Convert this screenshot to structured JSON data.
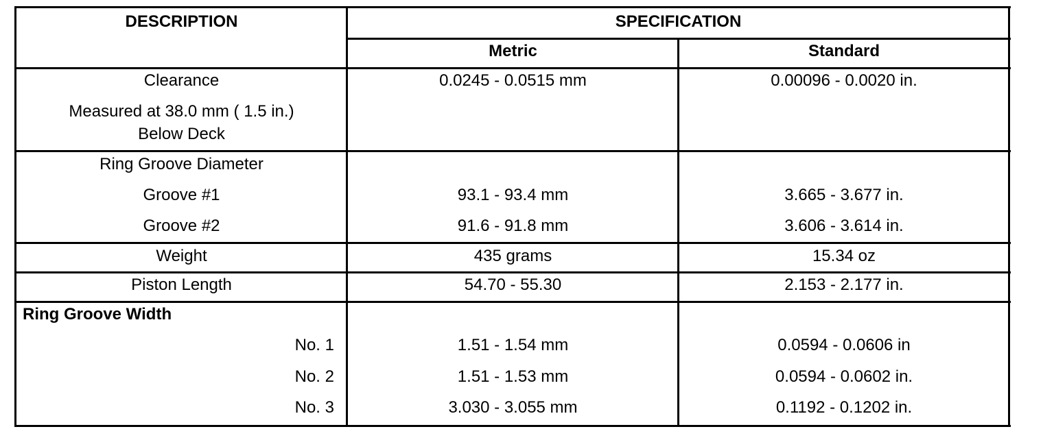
{
  "table": {
    "header": {
      "description": "DESCRIPTION",
      "specification": "SPECIFICATION",
      "metric": "Metric",
      "standard": "Standard"
    },
    "rows": [
      {
        "description": [
          "Clearance",
          "Measured at 38.0 mm ( 1.5 in.)",
          "Below Deck"
        ],
        "metric": [
          "0.0245 - 0.0515 mm"
        ],
        "standard": [
          "0.00096 - 0.0020 in."
        ]
      },
      {
        "description": [
          "Ring Groove Diameter",
          "Groove #1",
          "Groove #2"
        ],
        "metric": [
          "93.1 - 93.4 mm",
          "91.6 - 91.8 mm"
        ],
        "standard": [
          "3.665 - 3.677 in.",
          "3.606 - 3.614 in."
        ]
      },
      {
        "description": [
          "Weight"
        ],
        "metric": [
          "435 grams"
        ],
        "standard": [
          "15.34 oz"
        ]
      },
      {
        "description": [
          "Piston Length"
        ],
        "metric": [
          "54.70 - 55.30"
        ],
        "standard": [
          "2.153 - 2.177 in."
        ]
      },
      {
        "description": [
          "Ring Groove Width",
          "No. 1",
          "No. 2",
          "No. 3"
        ],
        "metric": [
          "1.51 - 1.54 mm",
          "1.51 - 1.53 mm",
          "3.030 - 3.055 mm"
        ],
        "standard": [
          "0.0594 - 0.0606 in",
          "0.0594 - 0.0602 in.",
          "0.1192 - 0.1202 in."
        ]
      }
    ]
  }
}
